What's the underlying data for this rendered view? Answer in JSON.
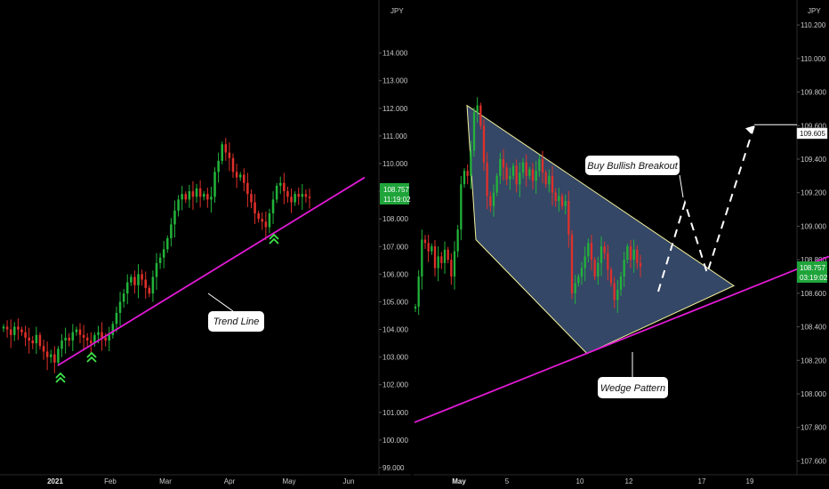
{
  "colors": {
    "background": "#000000",
    "candle_up": "#22b33a",
    "candle_down": "#e0302a",
    "trend_line": "#e01ad4",
    "wedge_fill": "#4a6591",
    "wedge_edge": "#f2ef9a",
    "price_badge": "#1fa43a",
    "marker": "#3ee64a"
  },
  "chart_data": [
    {
      "id": "daily",
      "type": "candlestick",
      "currency": "JPY",
      "ylim": [
        99.0,
        115.5
      ],
      "y_ticks": [
        "114.000",
        "113.000",
        "112.000",
        "111.000",
        "110.000",
        "109.000",
        "108.000",
        "107.000",
        "106.000",
        "105.000",
        "104.000",
        "103.000",
        "102.000",
        "101.000",
        "100.000",
        "99.000"
      ],
      "x_ticks": [
        {
          "label": "2021",
          "bold": true
        },
        {
          "label": "Feb",
          "bold": false
        },
        {
          "label": "Mar",
          "bold": false
        },
        {
          "label": "Apr",
          "bold": false
        },
        {
          "label": "May",
          "bold": false
        },
        {
          "label": "Jun",
          "bold": false
        }
      ],
      "last_price": "108.757",
      "countdown": "11:19:02",
      "annotation": "Trend Line",
      "closes": [
        104.1,
        104.0,
        103.8,
        104.1,
        104.0,
        103.9,
        103.7,
        103.6,
        103.5,
        103.8,
        103.4,
        103.2,
        103.0,
        103.1,
        102.8,
        103.3,
        103.6,
        103.7,
        103.6,
        103.9,
        104.0,
        103.8,
        103.7,
        103.6,
        103.5,
        103.8,
        103.9,
        103.7,
        103.6,
        103.8,
        104.2,
        104.6,
        105.0,
        105.3,
        105.7,
        105.9,
        105.6,
        106.0,
        105.8,
        105.5,
        105.3,
        105.9,
        106.4,
        106.6,
        106.9,
        107.3,
        107.8,
        108.3,
        108.7,
        108.9,
        108.7,
        109.0,
        108.8,
        109.1,
        108.8,
        108.9,
        108.7,
        108.8,
        109.7,
        110.1,
        110.7,
        110.4,
        110.2,
        109.7,
        109.5,
        109.6,
        109.3,
        108.9,
        108.6,
        108.2,
        108.0,
        107.9,
        107.7,
        108.2,
        108.7,
        109.2,
        109.3,
        109.0,
        108.8,
        108.6,
        108.9,
        108.8,
        108.9,
        108.8,
        108.76
      ],
      "trend_line": [
        [
          103.0,
          102.7
        ],
        [
          6.0,
          109.4
        ]
      ]
    },
    {
      "id": "hourly",
      "type": "candlestick",
      "currency": "JPY",
      "ylim": [
        107.56,
        110.28
      ],
      "y_ticks": [
        "110.200",
        "110.000",
        "109.800",
        "109.600",
        "109.400",
        "109.200",
        "109.000",
        "108.800",
        "108.600",
        "108.400",
        "108.200",
        "108.000",
        "107.800",
        "107.600"
      ],
      "x_ticks": [
        {
          "label": "May",
          "bold": true
        },
        {
          "label": "5",
          "bold": false
        },
        {
          "label": "10",
          "bold": false
        },
        {
          "label": "12",
          "bold": false
        },
        {
          "label": "17",
          "bold": false
        },
        {
          "label": "19",
          "bold": false
        }
      ],
      "last_price": "108.757",
      "countdown": "03:19:02",
      "target_price": "109.605",
      "annotations": [
        "Buy Bullish Breakout",
        "Wedge Pattern"
      ],
      "closes": [
        108.52,
        108.7,
        108.92,
        108.9,
        108.85,
        108.88,
        108.75,
        108.82,
        108.78,
        108.86,
        108.8,
        108.7,
        108.85,
        108.98,
        109.25,
        109.33,
        109.3,
        109.45,
        109.68,
        109.72,
        109.6,
        109.38,
        109.18,
        109.12,
        109.2,
        109.3,
        109.4,
        109.35,
        109.28,
        109.3,
        109.36,
        109.25,
        109.32,
        109.38,
        109.3,
        109.34,
        109.27,
        109.33,
        109.4,
        109.32,
        109.25,
        109.3,
        109.2,
        109.15,
        109.18,
        109.12,
        109.15,
        108.95,
        108.6,
        108.66,
        108.7,
        108.75,
        108.82,
        108.9,
        108.8,
        108.7,
        108.78,
        108.88,
        108.84,
        108.74,
        108.66,
        108.56,
        108.62,
        108.7,
        108.8,
        108.88,
        108.8,
        108.86,
        108.78,
        108.76
      ],
      "wedge": [
        [
          109.72
        ],
        [
          108.95
        ],
        [
          108.24
        ],
        [
          108.64
        ]
      ]
    }
  ]
}
